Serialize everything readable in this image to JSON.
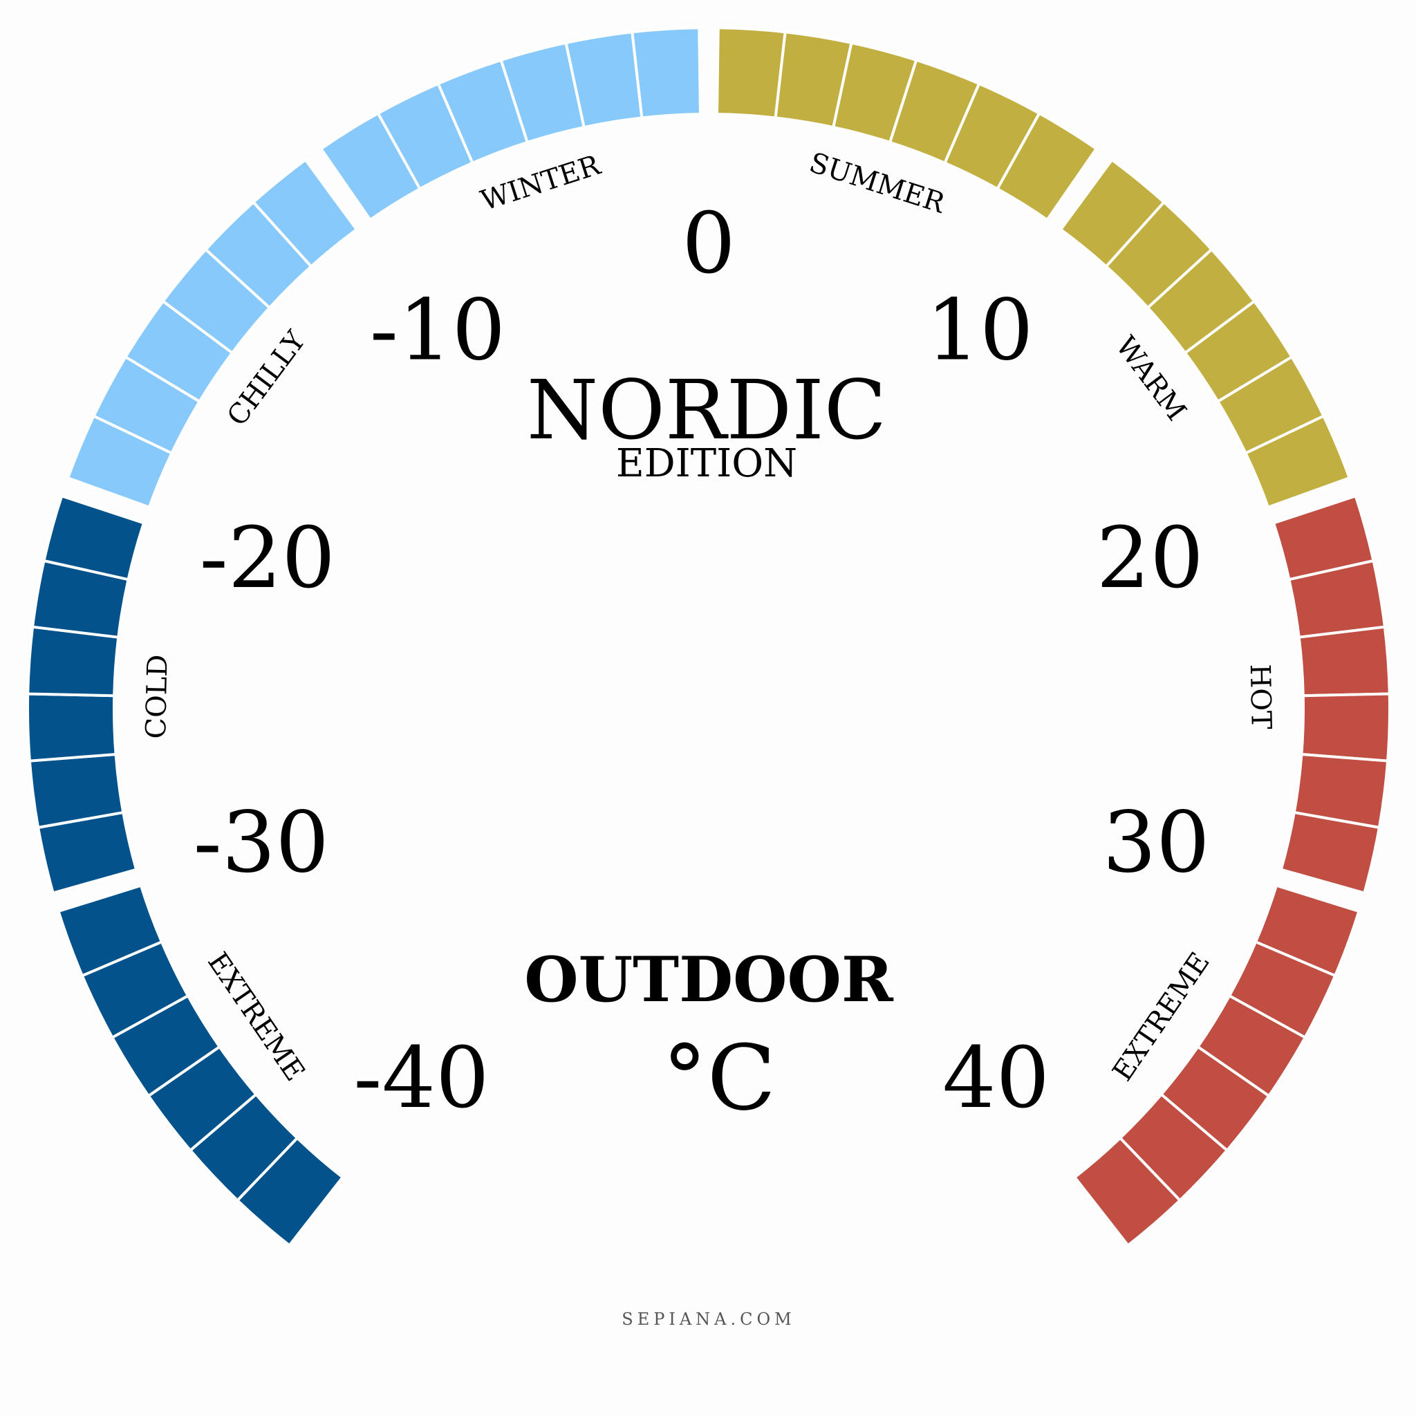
{
  "dial": {
    "title": "NORDIC",
    "subtitle": "EDITION",
    "type_label": "OUTDOOR",
    "unit": "°C",
    "footer": "SEPIANA.COM",
    "min_value": -40,
    "max_value": 40,
    "major_ticks": [
      "-40",
      "-30",
      "-20",
      "-10",
      "0",
      "10",
      "20",
      "30",
      "40"
    ],
    "zones": [
      {
        "name": "extreme-cold",
        "label": "EXTREME",
        "from": -40,
        "to": -30,
        "color": "#04528c"
      },
      {
        "name": "cold",
        "label": "COLD",
        "from": -30,
        "to": -20,
        "color": "#04528c"
      },
      {
        "name": "chilly",
        "label": "CHILLY",
        "from": -20,
        "to": -10,
        "color": "#87c9fb"
      },
      {
        "name": "winter",
        "label": "WINTER",
        "from": -10,
        "to": 0,
        "color": "#87c9fb"
      },
      {
        "name": "summer",
        "label": "SUMMER",
        "from": 0,
        "to": 10,
        "color": "#c1af41"
      },
      {
        "name": "warm",
        "label": "WARM",
        "from": 10,
        "to": 20,
        "color": "#c1af41"
      },
      {
        "name": "hot",
        "label": "HOT",
        "from": 20,
        "to": 30,
        "color": "#c04e43"
      },
      {
        "name": "extreme-hot",
        "label": "EXTREME",
        "from": 30,
        "to": 40,
        "color": "#c04e43"
      }
    ]
  }
}
